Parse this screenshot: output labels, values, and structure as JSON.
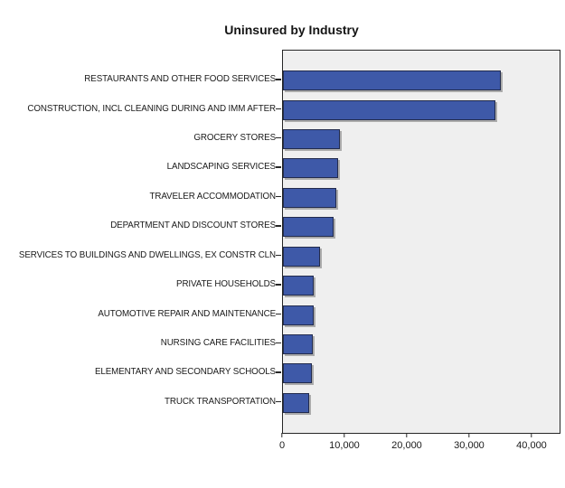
{
  "title": "Uninsured by Industry",
  "colors": {
    "bar_fill": "#3e59a8",
    "bar_border": "#222b4d",
    "bar_shadow": "#ababab",
    "plot_background": "#efefef",
    "plot_border": "#262626",
    "text": "#1a1a1a",
    "page_background": "#ffffff"
  },
  "chart_data": {
    "type": "bar",
    "orientation": "horizontal",
    "title": "Uninsured by Industry",
    "categories": [
      "RESTAURANTS AND OTHER FOOD SERVICES",
      "CONSTRUCTION, INCL CLEANING DURING AND IMM AFTER",
      "GROCERY STORES",
      "LANDSCAPING SERVICES",
      "TRAVELER ACCOMMODATION",
      "DEPARTMENT AND DISCOUNT STORES",
      "SERVICES TO BUILDINGS AND DWELLINGS, EX CONSTR CLN",
      "PRIVATE HOUSEHOLDS",
      "AUTOMOTIVE REPAIR AND MAINTENANCE",
      "NURSING CARE FACILITIES",
      "ELEMENTARY AND SECONDARY SCHOOLS",
      "TRUCK TRANSPORTATION"
    ],
    "values": [
      35000,
      34000,
      9200,
      8800,
      8500,
      8100,
      5900,
      5000,
      5000,
      4800,
      4600,
      4200
    ],
    "xlabel": "",
    "ylabel": "",
    "xlim": [
      0,
      44350
    ],
    "xticks": [
      0,
      10000,
      20000,
      30000,
      40000
    ],
    "xtick_labels": [
      "0",
      "10,000",
      "20,000",
      "30,000",
      "40,000"
    ],
    "grid": false,
    "legend": null
  }
}
